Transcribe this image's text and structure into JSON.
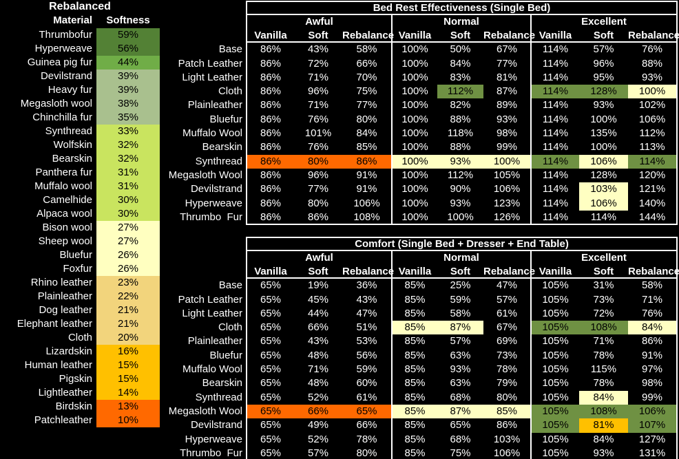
{
  "left_table": {
    "title": "Rebalanced",
    "col_material": "Material",
    "col_softness": "Softness",
    "rows": [
      {
        "material": "Thrumbofur",
        "softness": "59%",
        "tier": "dark_green"
      },
      {
        "material": "Hyperweave",
        "softness": "56%",
        "tier": "dark_green"
      },
      {
        "material": "Guinea pig fur",
        "softness": "44%",
        "tier": "green"
      },
      {
        "material": "Devilstrand",
        "softness": "39%",
        "tier": "sage"
      },
      {
        "material": "Heavy fur",
        "softness": "39%",
        "tier": "sage"
      },
      {
        "material": "Megasloth wool",
        "softness": "38%",
        "tier": "sage"
      },
      {
        "material": "Chinchilla fur",
        "softness": "35%",
        "tier": "sage"
      },
      {
        "material": "Synthread",
        "softness": "33%",
        "tier": "chartreuse"
      },
      {
        "material": "Wolfskin",
        "softness": "32%",
        "tier": "chartreuse"
      },
      {
        "material": "Bearskin",
        "softness": "32%",
        "tier": "chartreuse"
      },
      {
        "material": "Panthera fur",
        "softness": "31%",
        "tier": "chartreuse"
      },
      {
        "material": "Muffalo wool",
        "softness": "31%",
        "tier": "chartreuse"
      },
      {
        "material": "Camelhide",
        "softness": "30%",
        "tier": "chartreuse"
      },
      {
        "material": "Alpaca wool",
        "softness": "30%",
        "tier": "chartreuse"
      },
      {
        "material": "Bison wool",
        "softness": "27%",
        "tier": "pale_yellow"
      },
      {
        "material": "Sheep wool",
        "softness": "27%",
        "tier": "pale_yellow"
      },
      {
        "material": "Bluefur",
        "softness": "26%",
        "tier": "pale_yellow"
      },
      {
        "material": "Foxfur",
        "softness": "26%",
        "tier": "pale_yellow"
      },
      {
        "material": "Rhino leather",
        "softness": "23%",
        "tier": "tan"
      },
      {
        "material": "Plainleather",
        "softness": "22%",
        "tier": "tan"
      },
      {
        "material": "Dog leather",
        "softness": "21%",
        "tier": "tan"
      },
      {
        "material": "Elephant leather",
        "softness": "21%",
        "tier": "tan"
      },
      {
        "material": "Cloth",
        "softness": "20%",
        "tier": "tan"
      },
      {
        "material": "Lizardskin",
        "softness": "16%",
        "tier": "gold"
      },
      {
        "material": "Human leather",
        "softness": "15%",
        "tier": "gold"
      },
      {
        "material": "Pigskin",
        "softness": "15%",
        "tier": "gold"
      },
      {
        "material": "Lightleather",
        "softness": "14%",
        "tier": "gold"
      },
      {
        "material": "Birdskin",
        "softness": "13%",
        "tier": "orange"
      },
      {
        "material": "Patchleather",
        "softness": "10%",
        "tier": "orange"
      }
    ]
  },
  "tier_colors": {
    "dark_green": "#538135",
    "green": "#70ad47",
    "sage": "#a9c08e",
    "chartreuse": "#c9e45f",
    "pale_yellow": "#ffffc0",
    "tan": "#f2d47c",
    "gold": "#ffc000",
    "orange": "#ff6900"
  },
  "highlight_colors": {
    "g": "#6f9143",
    "y": "#ffffc2",
    "o": "#ff6900",
    "a": "#ffc000"
  },
  "tables": [
    {
      "title": "Bed Rest Effectiveness (Single Bed)",
      "quality_headers": [
        "Awful",
        "Normal",
        "Excellent"
      ],
      "series_headers": [
        "Vanilla",
        "Soft",
        "Rebalance"
      ],
      "rows": [
        {
          "label": "Base",
          "values": [
            "86%",
            "43%",
            "58%",
            "100%",
            "50%",
            "67%",
            "114%",
            "57%",
            "76%"
          ]
        },
        {
          "label": "Patch Leather",
          "values": [
            "86%",
            "72%",
            "66%",
            "100%",
            "84%",
            "77%",
            "114%",
            "96%",
            "88%"
          ]
        },
        {
          "label": "Light Leather",
          "values": [
            "86%",
            "71%",
            "70%",
            "100%",
            "83%",
            "81%",
            "114%",
            "95%",
            "93%"
          ]
        },
        {
          "label": "Cloth",
          "values": [
            "86%",
            "96%",
            "75%",
            "100%",
            "112%",
            "87%",
            "114%",
            "128%",
            "100%"
          ],
          "bg": [
            "",
            "",
            "",
            "",
            "g",
            "",
            "g",
            "g",
            "y"
          ]
        },
        {
          "label": "Plainleather",
          "values": [
            "86%",
            "71%",
            "77%",
            "100%",
            "82%",
            "89%",
            "114%",
            "93%",
            "102%"
          ]
        },
        {
          "label": "Bluefur",
          "values": [
            "86%",
            "76%",
            "80%",
            "100%",
            "88%",
            "93%",
            "114%",
            "100%",
            "106%"
          ]
        },
        {
          "label": "Muffalo Wool",
          "values": [
            "86%",
            "101%",
            "84%",
            "100%",
            "118%",
            "98%",
            "114%",
            "135%",
            "112%"
          ]
        },
        {
          "label": "Bearskin",
          "values": [
            "86%",
            "76%",
            "85%",
            "100%",
            "88%",
            "99%",
            "114%",
            "100%",
            "113%"
          ]
        },
        {
          "label": "Synthread",
          "values": [
            "86%",
            "80%",
            "86%",
            "100%",
            "93%",
            "100%",
            "114%",
            "106%",
            "114%"
          ],
          "bg": [
            "o",
            "o",
            "o",
            "y",
            "y",
            "y",
            "g",
            "y",
            "g"
          ]
        },
        {
          "label": "Megasloth Wool",
          "values": [
            "86%",
            "96%",
            "91%",
            "100%",
            "112%",
            "105%",
            "114%",
            "128%",
            "120%"
          ]
        },
        {
          "label": "Devilstrand",
          "values": [
            "86%",
            "77%",
            "91%",
            "100%",
            "90%",
            "106%",
            "114%",
            "103%",
            "121%"
          ],
          "bg": [
            "",
            "",
            "",
            "",
            "",
            "",
            "",
            "y",
            ""
          ]
        },
        {
          "label": "Hyperweave",
          "values": [
            "86%",
            "80%",
            "106%",
            "100%",
            "93%",
            "123%",
            "114%",
            "106%",
            "140%"
          ],
          "bg": [
            "",
            "",
            "",
            "",
            "",
            "",
            "",
            "y",
            ""
          ]
        },
        {
          "label": "Thrumbo  Fur",
          "values": [
            "86%",
            "86%",
            "108%",
            "100%",
            "100%",
            "126%",
            "114%",
            "114%",
            "144%"
          ]
        }
      ]
    },
    {
      "title": "Comfort (Single Bed + Dresser + End Table)",
      "quality_headers": [
        "Awful",
        "Normal",
        "Excellent"
      ],
      "series_headers": [
        "Vanilla",
        "Soft",
        "Rebalance"
      ],
      "rows": [
        {
          "label": "Base",
          "values": [
            "65%",
            "19%",
            "36%",
            "85%",
            "25%",
            "47%",
            "105%",
            "31%",
            "58%"
          ]
        },
        {
          "label": "Patch Leather",
          "values": [
            "65%",
            "45%",
            "43%",
            "85%",
            "59%",
            "57%",
            "105%",
            "73%",
            "71%"
          ]
        },
        {
          "label": "Light Leather",
          "values": [
            "65%",
            "44%",
            "47%",
            "85%",
            "58%",
            "61%",
            "105%",
            "72%",
            "76%"
          ]
        },
        {
          "label": "Cloth",
          "values": [
            "65%",
            "66%",
            "51%",
            "85%",
            "87%",
            "67%",
            "105%",
            "108%",
            "84%"
          ],
          "bg": [
            "",
            "",
            "",
            "y",
            "y",
            "",
            "g",
            "g",
            "y"
          ]
        },
        {
          "label": "Plainleather",
          "values": [
            "65%",
            "43%",
            "53%",
            "85%",
            "57%",
            "69%",
            "105%",
            "71%",
            "86%"
          ]
        },
        {
          "label": "Bluefur",
          "values": [
            "65%",
            "48%",
            "56%",
            "85%",
            "63%",
            "73%",
            "105%",
            "78%",
            "91%"
          ]
        },
        {
          "label": "Muffalo Wool",
          "values": [
            "65%",
            "71%",
            "59%",
            "85%",
            "93%",
            "78%",
            "105%",
            "115%",
            "97%"
          ]
        },
        {
          "label": "Bearskin",
          "values": [
            "65%",
            "48%",
            "60%",
            "85%",
            "63%",
            "79%",
            "105%",
            "78%",
            "98%"
          ]
        },
        {
          "label": "Synthread",
          "values": [
            "65%",
            "52%",
            "61%",
            "85%",
            "68%",
            "80%",
            "105%",
            "84%",
            "99%"
          ],
          "bg": [
            "",
            "",
            "",
            "",
            "",
            "",
            "",
            "y",
            ""
          ]
        },
        {
          "label": "Megasloth Wool",
          "values": [
            "65%",
            "66%",
            "65%",
            "85%",
            "87%",
            "85%",
            "105%",
            "108%",
            "106%"
          ],
          "bg": [
            "o",
            "o",
            "o",
            "y",
            "y",
            "y",
            "g",
            "g",
            "g"
          ]
        },
        {
          "label": "Devilstrand",
          "values": [
            "65%",
            "49%",
            "66%",
            "85%",
            "65%",
            "86%",
            "105%",
            "81%",
            "107%"
          ],
          "bg": [
            "",
            "",
            "",
            "",
            "",
            "",
            "g",
            "a",
            "g"
          ]
        },
        {
          "label": "Hyperweave",
          "values": [
            "65%",
            "52%",
            "78%",
            "85%",
            "68%",
            "103%",
            "105%",
            "84%",
            "127%"
          ]
        },
        {
          "label": "Thrumbo  Fur",
          "values": [
            "65%",
            "57%",
            "80%",
            "85%",
            "75%",
            "106%",
            "105%",
            "93%",
            "131%"
          ]
        }
      ]
    }
  ]
}
